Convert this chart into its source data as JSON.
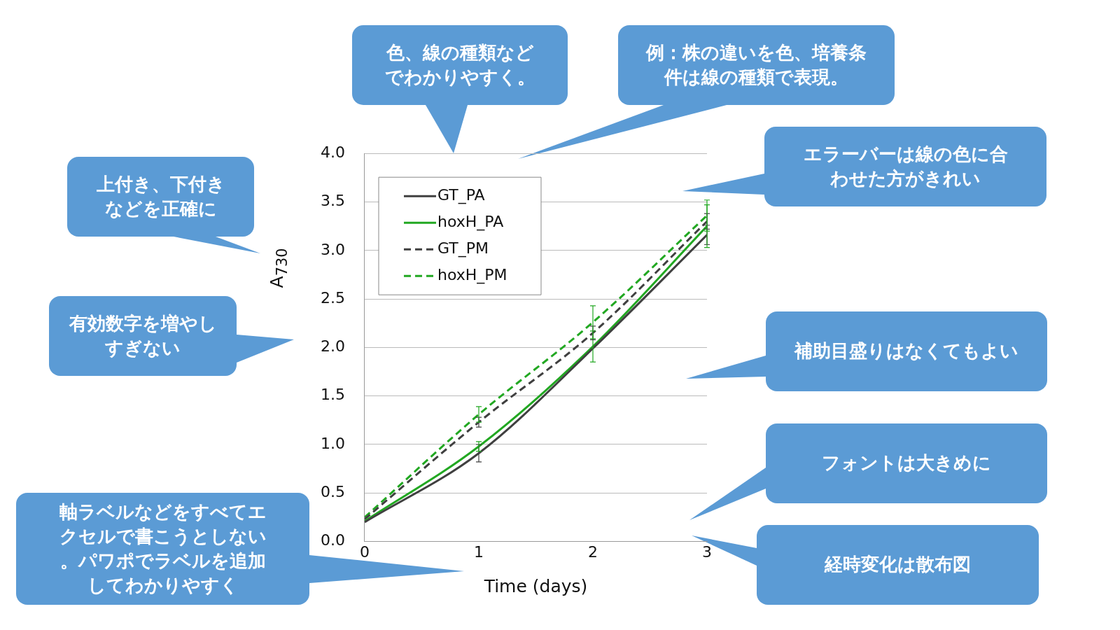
{
  "chart_data": {
    "type": "line",
    "xlabel": "Time (days)",
    "ylabel": "A$_{730}$",
    "x": [
      0,
      1,
      2,
      3
    ],
    "xlim": [
      0,
      3
    ],
    "xticks": [
      0,
      1,
      2,
      3
    ],
    "ylim": [
      0,
      4
    ],
    "yticks": [
      {
        "value": 0,
        "label": "0.0"
      },
      {
        "value": 0.5,
        "label": "0.5"
      },
      {
        "value": 1,
        "label": "1.0"
      },
      {
        "value": 1.5,
        "label": "1.5"
      },
      {
        "value": 2,
        "label": "2.0"
      },
      {
        "value": 2.5,
        "label": "2.5"
      },
      {
        "value": 3,
        "label": "3.0"
      },
      {
        "value": 3.5,
        "label": "3.5"
      },
      {
        "value": 4,
        "label": "4.0"
      }
    ],
    "grid": "y",
    "legend": "top left",
    "marker": "none",
    "series": [
      {
        "name": "GT_PA",
        "color": "#404040",
        "line_style": "solid",
        "values": [
          0.2,
          0.91,
          1.99,
          3.16
        ],
        "errors": [
          null,
          0.09,
          null,
          0.1
        ]
      },
      {
        "name": "hoxH_PA",
        "color": "#22a822",
        "line_style": "solid",
        "values": [
          0.21,
          0.98,
          2.01,
          3.25
        ],
        "errors": [
          null,
          0.05,
          0.16,
          0.22
        ]
      },
      {
        "name": "GT_PM",
        "color": "#404040",
        "line_style": "dashed",
        "values": [
          0.23,
          1.23,
          2.15,
          3.3
        ],
        "errors": [
          null,
          0.05,
          0.07,
          0.08
        ]
      },
      {
        "name": "hoxH_PM",
        "color": "#22a822",
        "line_style": "dashed",
        "values": [
          0.25,
          1.31,
          2.26,
          3.36
        ],
        "errors": [
          null,
          0.08,
          0.17,
          0.16
        ]
      }
    ],
    "annotations": [
      "色、線の種類などでわかりやすく。",
      "例：株の違いを色、培養条件は線の種類で表現。",
      "エラーバーは線の色に合わせた方がきれい",
      "上付き、下付きなどを正確に",
      "有効数字を増やしすぎない",
      "補助目盛りはなくてもよい",
      "フォントは大きめに",
      "軸ラベルなどをすべてエクセルで書こうとしない。パワポでラベルを追加してわかりやすく",
      "経時変化は散布図"
    ]
  }
}
